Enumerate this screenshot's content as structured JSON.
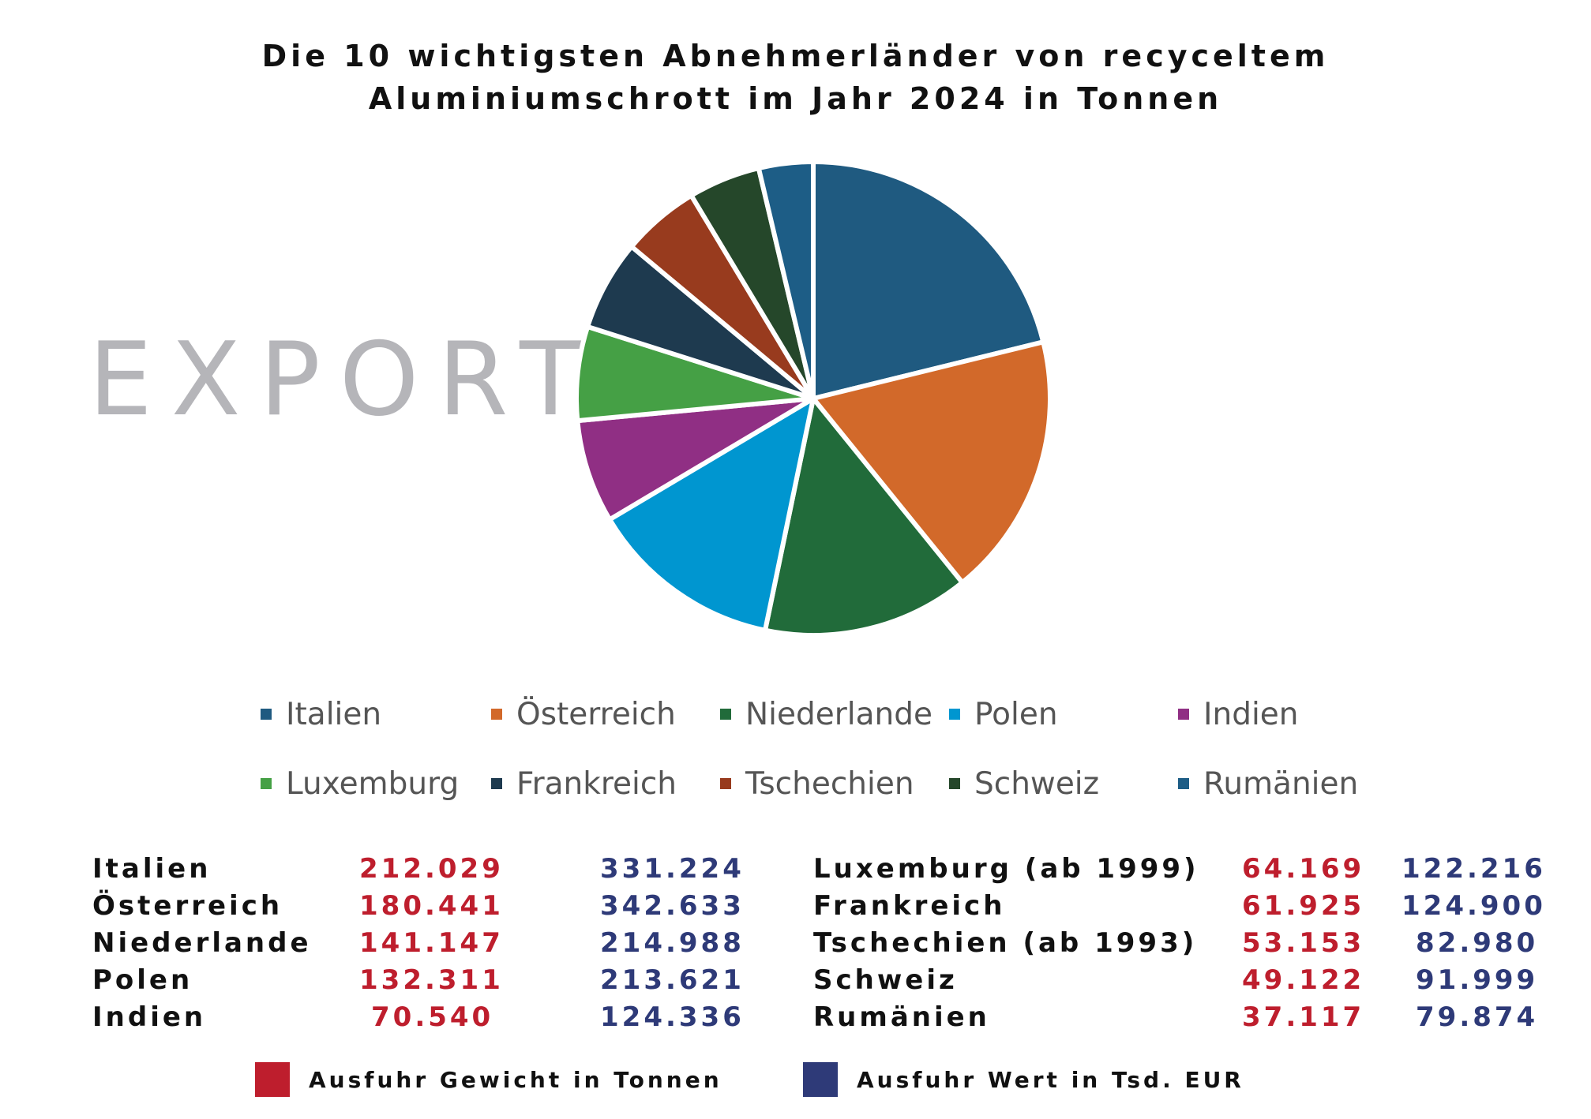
{
  "chart_data": {
    "type": "pie",
    "title": "Die 10 wichtigsten Abnehmerländer von recyceltem Aluminiumschrott im Jahr 2024 in Tonnen",
    "title_lines": [
      "Die 10 wichtigsten Abnehmerländer von recyceltem",
      "Aluminiumschrott im Jahr 2024 in Tonnen"
    ],
    "side_label": "EXPORT",
    "categories": [
      "Italien",
      "Österreich",
      "Niederlande",
      "Polen",
      "Indien",
      "Luxemburg",
      "Frankreich",
      "Tschechien",
      "Schweiz",
      "Rumänien"
    ],
    "values": [
      212029,
      180441,
      141147,
      132311,
      70540,
      64169,
      61925,
      53153,
      49122,
      37117
    ],
    "colors": [
      "#1f5a80",
      "#d2692a",
      "#216b3a",
      "#0096d0",
      "#902f84",
      "#45a045",
      "#1e3a4f",
      "#983b1e",
      "#25472a",
      "#1d5d86"
    ],
    "legend_position": "bottom",
    "grid": false
  },
  "legend": {
    "items": [
      {
        "label": "Italien",
        "color": "#1f5a80"
      },
      {
        "label": "Österreich",
        "color": "#d2692a"
      },
      {
        "label": "Niederlande",
        "color": "#216b3a"
      },
      {
        "label": "Polen",
        "color": "#0096d0"
      },
      {
        "label": "Indien",
        "color": "#902f84"
      },
      {
        "label": "Luxemburg",
        "color": "#45a045"
      },
      {
        "label": "Frankreich",
        "color": "#1e3a4f"
      },
      {
        "label": "Tschechien",
        "color": "#983b1e"
      },
      {
        "label": "Schweiz",
        "color": "#25472a"
      },
      {
        "label": "Rumänien",
        "color": "#1d5d86"
      }
    ]
  },
  "table": {
    "rows": [
      {
        "name": "Italien",
        "weight": "212.029",
        "value": "331.224"
      },
      {
        "name": "Österreich",
        "weight": "180.441",
        "value": "342.633"
      },
      {
        "name": "Niederlande",
        "weight": "141.147",
        "value": "214.988"
      },
      {
        "name": "Polen",
        "weight": "132.311",
        "value": "213.621"
      },
      {
        "name": "Indien",
        "weight": "70.540",
        "value": "124.336"
      },
      {
        "name": "Luxemburg (ab 1999)",
        "weight": "64.169",
        "value": "122.216"
      },
      {
        "name": "Frankreich",
        "weight": "61.925",
        "value": "124.900"
      },
      {
        "name": "Tschechien (ab 1993)",
        "weight": "53.153",
        "value": "82.980"
      },
      {
        "name": "Schweiz",
        "weight": "49.122",
        "value": "91.999"
      },
      {
        "name": "Rumänien",
        "weight": "37.117",
        "value": "79.874"
      }
    ]
  },
  "key": {
    "weight_label": "Ausfuhr Gewicht in Tonnen",
    "weight_color": "#be1e2d",
    "value_label": "Ausfuhr Wert in Tsd. EUR",
    "value_color": "#2e3a78"
  }
}
